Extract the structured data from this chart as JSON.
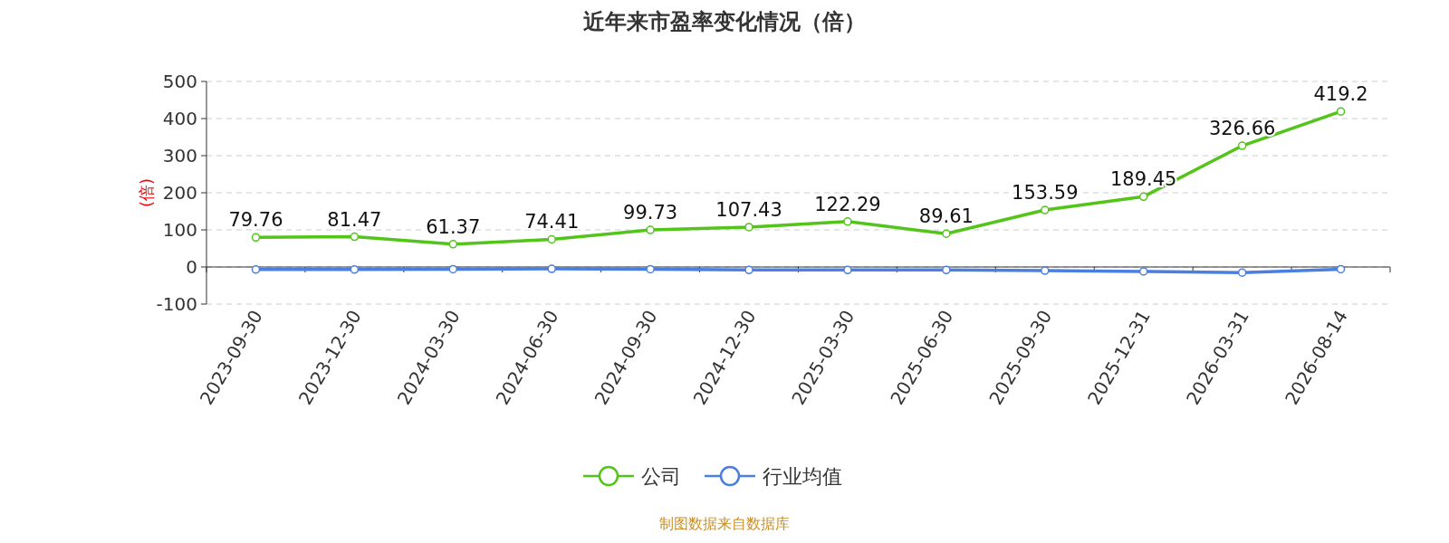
{
  "chart_data": {
    "type": "line",
    "title": "近年来市盈率变化情况（倍）",
    "ylabel": "(倍)",
    "categories": [
      "2023-09-30",
      "2023-12-30",
      "2024-03-30",
      "2024-06-30",
      "2024-09-30",
      "2024-12-30",
      "2025-03-30",
      "2025-06-30",
      "2025-09-30",
      "2025-12-31",
      "2026-03-31",
      "2026-08-14"
    ],
    "series": [
      {
        "name": "公司",
        "color": "#52c41a",
        "values": [
          79.76,
          81.47,
          61.37,
          74.41,
          99.73,
          107.43,
          122.29,
          89.61,
          153.59,
          189.45,
          326.66,
          419.2
        ],
        "value_labels": [
          "79.76",
          "81.47",
          "61.37",
          "74.41",
          "99.73",
          "107.43",
          "122.29",
          "89.61",
          "153.59",
          "189.45",
          "326.66",
          "419.2"
        ]
      },
      {
        "name": "行业均值",
        "color": "#4a7fe0",
        "values": [
          -7,
          -7,
          -6,
          -5,
          -6,
          -8,
          -8,
          -8,
          -10,
          -12,
          -15,
          -6
        ]
      }
    ],
    "ylim": [
      -100,
      500
    ],
    "yticks": [
      -100,
      0,
      100,
      200,
      300,
      400,
      500
    ],
    "grid": "y",
    "legend": "bottom",
    "marker": "circle",
    "line_style": "solid",
    "annotations": [
      "制图数据来自数据库"
    ]
  }
}
